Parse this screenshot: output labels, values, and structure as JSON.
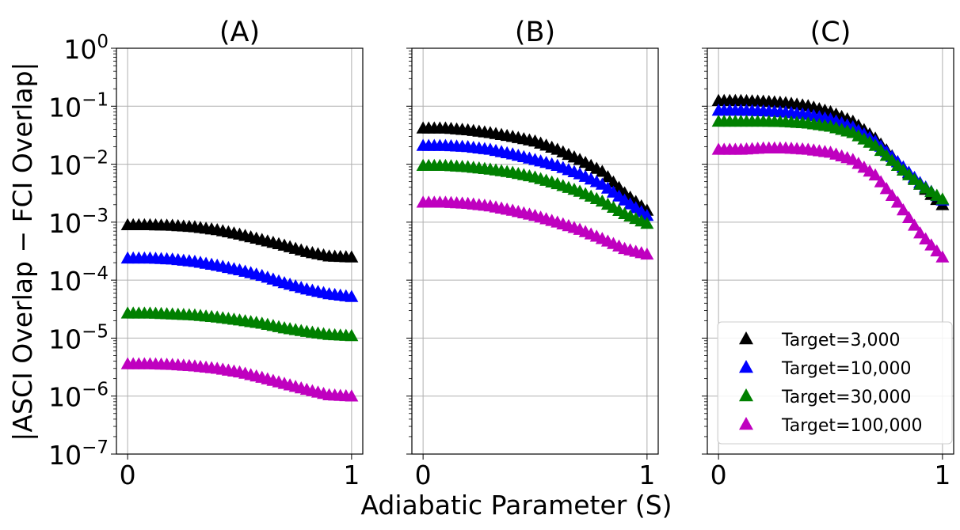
{
  "figure": {
    "ylabel": "|ASCI Overlap − FCI Overlap|",
    "xlabel": "Adiabatic Parameter (S)"
  },
  "legend": {
    "location": "lower-right of panel C",
    "entries": [
      {
        "label": "Target=3,000",
        "color": "#000000"
      },
      {
        "label": "Target=10,000",
        "color": "#0000ff"
      },
      {
        "label": "Target=30,000",
        "color": "#008000"
      },
      {
        "label": "Target=100,000",
        "color": "#bf00bf"
      }
    ]
  },
  "chart_data": [
    {
      "type": "scatter",
      "title": "(A)",
      "yscale": "log",
      "ylim_exponents": [
        -7,
        0
      ],
      "ytick_labels": [
        {
          "base": "10",
          "exp": "0"
        },
        {
          "base": "10",
          "exp": "−1"
        },
        {
          "base": "10",
          "exp": "−2"
        },
        {
          "base": "10",
          "exp": "−3"
        },
        {
          "base": "10",
          "exp": "−4"
        },
        {
          "base": "10",
          "exp": "−5"
        },
        {
          "base": "10",
          "exp": "−6"
        },
        {
          "base": "10",
          "exp": "−7"
        }
      ],
      "xlim": [
        -0.05,
        1.05
      ],
      "xtick_labels": [
        "0",
        "1"
      ],
      "marker": "triangle-up",
      "series": [
        {
          "name": "Target=3,000",
          "x": [
            0,
            0.1,
            0.2,
            0.3,
            0.4,
            0.5,
            0.6,
            0.7,
            0.8,
            0.9,
            1.0
          ],
          "y": [
            0.0009,
            0.0009,
            0.00088,
            0.00083,
            0.00074,
            0.00062,
            0.0005,
            0.0004,
            0.00031,
            0.00026,
            0.00025
          ]
        },
        {
          "name": "Target=10,000",
          "x": [
            0,
            0.1,
            0.2,
            0.3,
            0.4,
            0.5,
            0.6,
            0.7,
            0.8,
            0.9,
            1.0
          ],
          "y": [
            0.00024,
            0.00024,
            0.00023,
            0.00021,
            0.00018,
            0.00015,
            0.00012,
            9e-05,
            7e-05,
            5.8e-05,
            5.2e-05
          ]
        },
        {
          "name": "Target=30,000",
          "x": [
            0,
            0.1,
            0.2,
            0.3,
            0.4,
            0.5,
            0.6,
            0.7,
            0.8,
            0.9,
            1.0
          ],
          "y": [
            2.7e-05,
            2.7e-05,
            2.6e-05,
            2.5e-05,
            2.3e-05,
            2.05e-05,
            1.8e-05,
            1.5e-05,
            1.3e-05,
            1.15e-05,
            1.1e-05
          ]
        },
        {
          "name": "Target=100,000",
          "x": [
            0,
            0.1,
            0.2,
            0.3,
            0.4,
            0.5,
            0.6,
            0.7,
            0.8,
            0.9,
            1.0
          ],
          "y": [
            3.6e-06,
            3.6e-06,
            3.5e-06,
            3.3e-06,
            3e-06,
            2.6e-06,
            2.1e-06,
            1.65e-06,
            1.3e-06,
            1.05e-06,
            1e-06
          ]
        }
      ]
    },
    {
      "type": "scatter",
      "title": "(B)",
      "yscale": "log",
      "ylim_exponents": [
        -7,
        0
      ],
      "ytick_labels": [],
      "xlim": [
        -0.05,
        1.05
      ],
      "xtick_labels": [
        "0",
        "1"
      ],
      "marker": "triangle-up",
      "series": [
        {
          "name": "Target=3,000",
          "x": [
            0,
            0.1,
            0.2,
            0.3,
            0.4,
            0.5,
            0.6,
            0.7,
            0.8,
            0.9,
            1.0
          ],
          "y": [
            0.042,
            0.042,
            0.039,
            0.035,
            0.03,
            0.025,
            0.018,
            0.012,
            0.0075,
            0.0032,
            0.0016
          ]
        },
        {
          "name": "Target=10,000",
          "x": [
            0,
            0.1,
            0.2,
            0.3,
            0.4,
            0.5,
            0.6,
            0.7,
            0.8,
            0.9,
            1.0
          ],
          "y": [
            0.021,
            0.021,
            0.02,
            0.018,
            0.015,
            0.012,
            0.0095,
            0.0068,
            0.0045,
            0.0024,
            0.0013
          ]
        },
        {
          "name": "Target=30,000",
          "x": [
            0,
            0.1,
            0.2,
            0.3,
            0.4,
            0.5,
            0.6,
            0.7,
            0.8,
            0.9,
            1.0
          ],
          "y": [
            0.0095,
            0.0095,
            0.009,
            0.0082,
            0.0072,
            0.006,
            0.0046,
            0.0034,
            0.0023,
            0.0014,
            0.00095
          ]
        },
        {
          "name": "Target=100,000",
          "x": [
            0,
            0.1,
            0.2,
            0.3,
            0.4,
            0.5,
            0.6,
            0.7,
            0.8,
            0.9,
            1.0
          ],
          "y": [
            0.0022,
            0.0022,
            0.0021,
            0.0019,
            0.0016,
            0.0013,
            0.001,
            0.00075,
            0.00052,
            0.00035,
            0.00028
          ]
        }
      ]
    },
    {
      "type": "scatter",
      "title": "(C)",
      "yscale": "log",
      "ylim_exponents": [
        -7,
        0
      ],
      "ytick_labels": [],
      "xlim": [
        -0.05,
        1.05
      ],
      "xtick_labels": [
        "0",
        "1"
      ],
      "marker": "triangle-up",
      "series": [
        {
          "name": "Target=3,000",
          "x": [
            0,
            0.1,
            0.2,
            0.3,
            0.4,
            0.5,
            0.6,
            0.7,
            0.8,
            0.9,
            1.0
          ],
          "y": [
            0.125,
            0.125,
            0.122,
            0.115,
            0.102,
            0.08,
            0.055,
            0.028,
            0.011,
            0.0045,
            0.002
          ]
        },
        {
          "name": "Target=10,000",
          "x": [
            0,
            0.1,
            0.2,
            0.3,
            0.4,
            0.5,
            0.6,
            0.7,
            0.8,
            0.9,
            1.0
          ],
          "y": [
            0.085,
            0.085,
            0.083,
            0.079,
            0.072,
            0.06,
            0.044,
            0.025,
            0.011,
            0.0048,
            0.0024
          ]
        },
        {
          "name": "Target=30,000",
          "x": [
            0,
            0.1,
            0.2,
            0.3,
            0.4,
            0.5,
            0.6,
            0.7,
            0.8,
            0.9,
            1.0
          ],
          "y": [
            0.055,
            0.055,
            0.055,
            0.054,
            0.051,
            0.045,
            0.035,
            0.021,
            0.0095,
            0.0045,
            0.0025
          ]
        },
        {
          "name": "Target=100,000",
          "x": [
            0,
            0.1,
            0.2,
            0.3,
            0.4,
            0.5,
            0.6,
            0.7,
            0.8,
            0.9,
            1.0
          ],
          "y": [
            0.018,
            0.018,
            0.019,
            0.019,
            0.018,
            0.016,
            0.012,
            0.0065,
            0.0022,
            0.00065,
            0.00025
          ]
        }
      ]
    }
  ]
}
